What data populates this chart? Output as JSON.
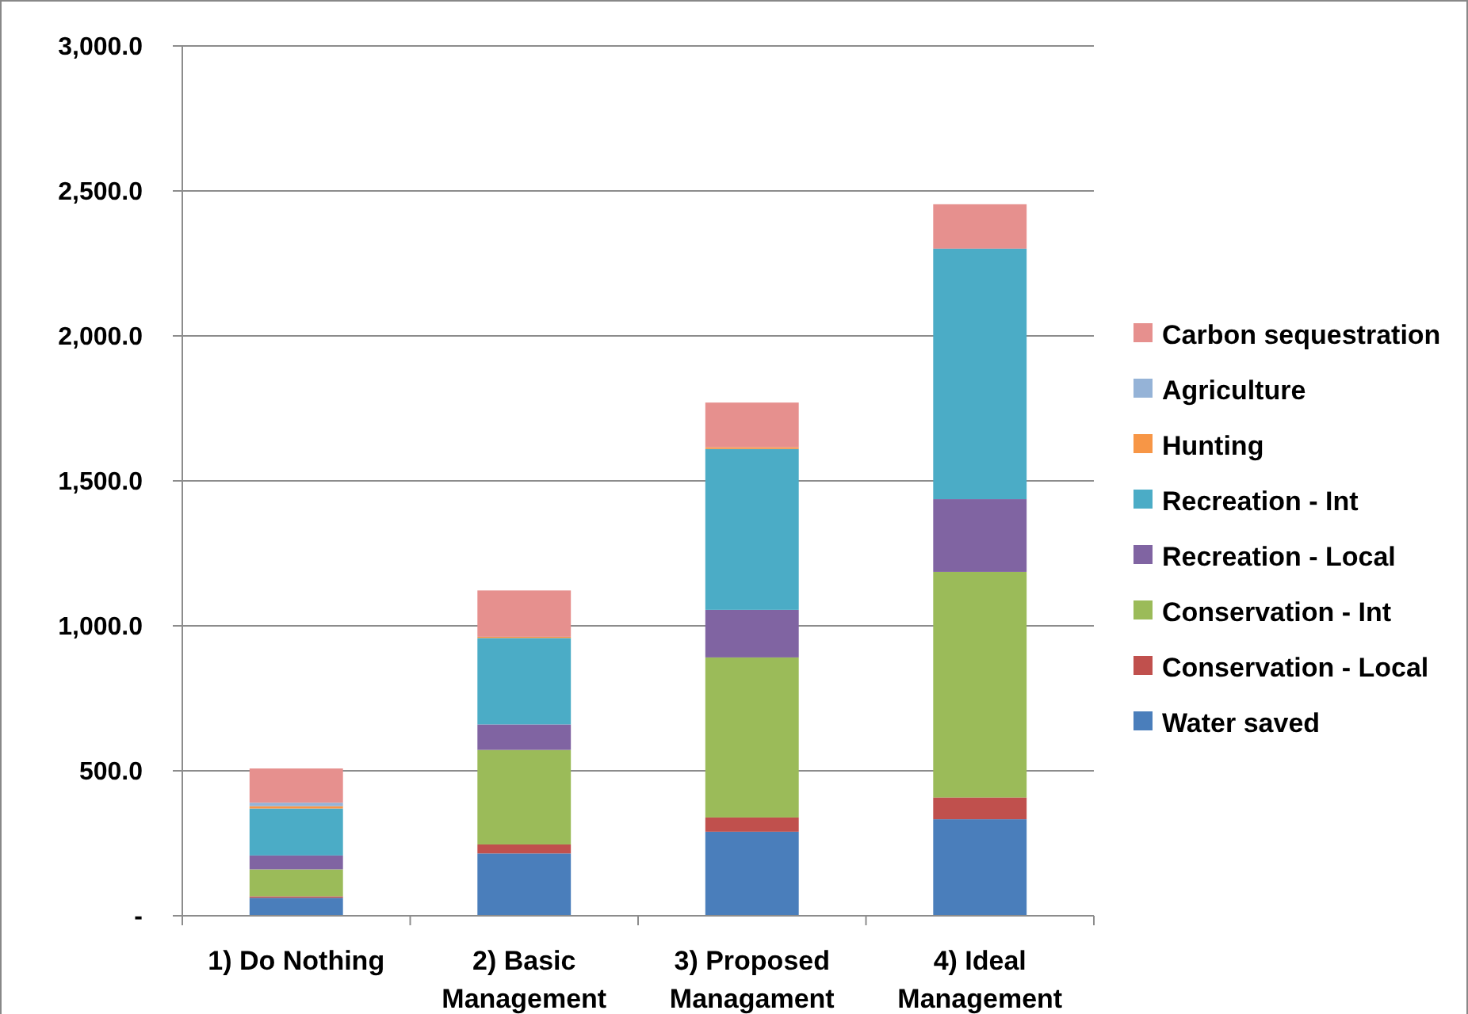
{
  "chart_data": {
    "type": "bar",
    "stacked": true,
    "categories": [
      "1) Do Nothing",
      "2) Basic Management",
      "3) Proposed Managament",
      "4) Ideal Management"
    ],
    "series": [
      {
        "name": "Water saved",
        "color": "#4a7ebb",
        "values": [
          62,
          215,
          290,
          333
        ]
      },
      {
        "name": "Conservation - Local",
        "color": "#c0504d",
        "values": [
          5,
          31,
          49,
          75
        ]
      },
      {
        "name": "Conservation - Int",
        "color": "#9bbb59",
        "values": [
          93,
          326,
          552,
          778
        ]
      },
      {
        "name": "Recreation - Local",
        "color": "#8064a2",
        "values": [
          48,
          88,
          164,
          251
        ]
      },
      {
        "name": "Recreation - Int",
        "color": "#4bacc6",
        "values": [
          162,
          298,
          555,
          864
        ]
      },
      {
        "name": "Hunting",
        "color": "#f79646",
        "values": [
          8,
          4,
          6,
          0
        ]
      },
      {
        "name": "Agriculture",
        "color": "#95b3d7",
        "values": [
          12,
          0,
          0,
          0
        ]
      },
      {
        "name": "Carbon sequestration",
        "color": "#e6908e",
        "values": [
          118,
          160,
          154,
          153
        ]
      }
    ],
    "ylim": [
      0,
      3000
    ],
    "yticks": [
      {
        "value": 0,
        "label": "-"
      },
      {
        "value": 500,
        "label": "500.0"
      },
      {
        "value": 1000,
        "label": "1,000.0"
      },
      {
        "value": 1500,
        "label": "1,500.0"
      },
      {
        "value": 2000,
        "label": "2,000.0"
      },
      {
        "value": 2500,
        "label": "2,500.0"
      },
      {
        "value": 3000,
        "label": "3,000.0"
      }
    ],
    "grid": "y",
    "legend": "right"
  }
}
